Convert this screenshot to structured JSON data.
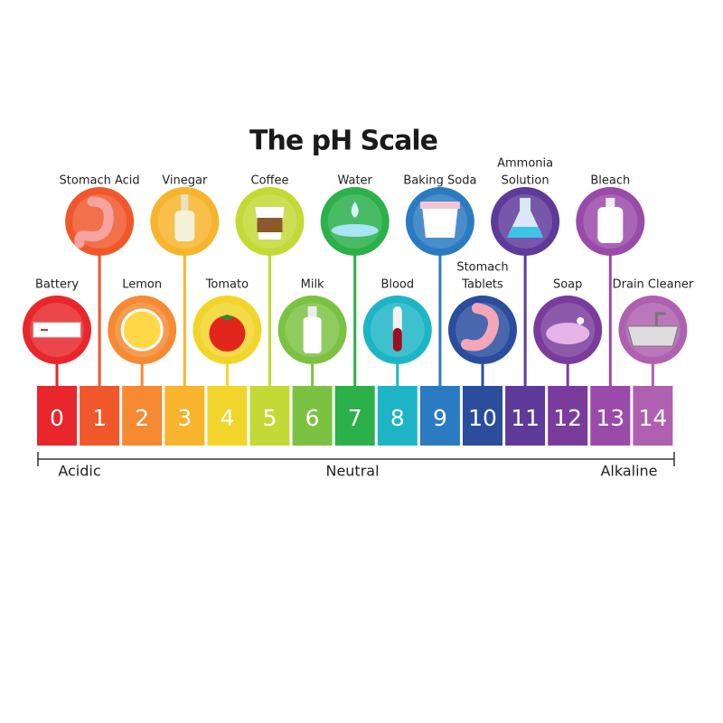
{
  "title": "The pH Scale",
  "scale": [
    {
      "value": "0",
      "item": [
        "Battery"
      ]
    },
    {
      "value": "1",
      "item": [
        "Stomach Acid"
      ]
    },
    {
      "value": "2",
      "item": [
        "Lemon"
      ]
    },
    {
      "value": "3",
      "item": [
        "Vinegar"
      ]
    },
    {
      "value": "4",
      "item": [
        "Tomato"
      ]
    },
    {
      "value": "5",
      "item": [
        "Coffee"
      ]
    },
    {
      "value": "6",
      "item": [
        "Milk"
      ]
    },
    {
      "value": "7",
      "item": [
        "Water"
      ]
    },
    {
      "value": "8",
      "item": [
        "Blood"
      ]
    },
    {
      "value": "9",
      "item": [
        "Baking Soda"
      ]
    },
    {
      "value": "10",
      "item": [
        "Stomach",
        "Tablets"
      ]
    },
    {
      "value": "11",
      "item": [
        "Ammonia",
        "Solution"
      ]
    },
    {
      "value": "12",
      "item": [
        "Soap"
      ]
    },
    {
      "value": "13",
      "item": [
        "Bleach"
      ]
    },
    {
      "value": "14",
      "item": [
        "Drain Cleaner"
      ]
    }
  ],
  "axis": {
    "left": "Acidic",
    "middle": "Neutral",
    "right": "Alkaline"
  }
}
